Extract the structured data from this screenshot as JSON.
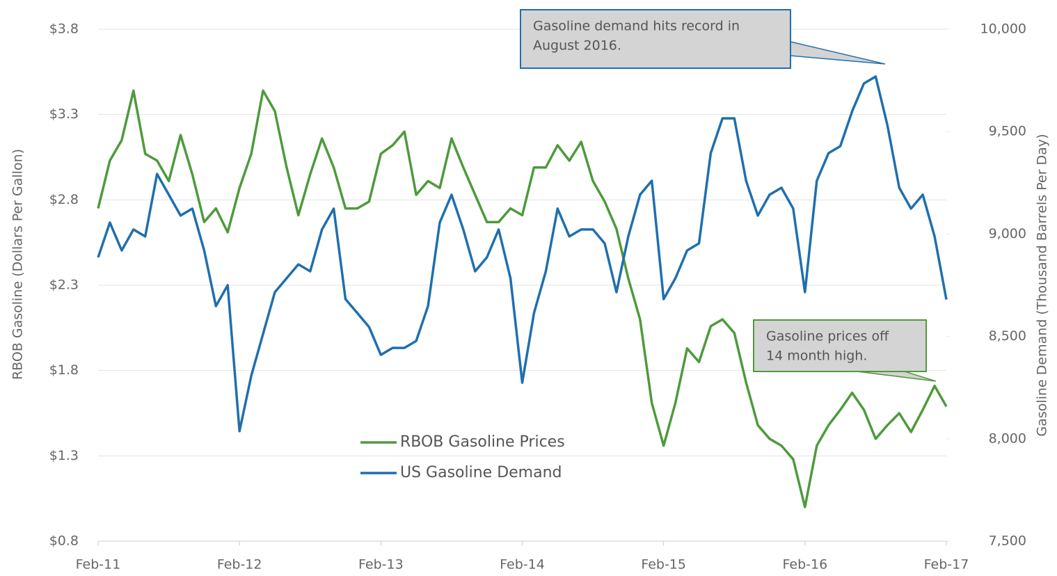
{
  "chart_data": {
    "type": "line",
    "categories": [
      "Feb-11",
      null,
      null,
      null,
      null,
      null,
      null,
      null,
      null,
      null,
      null,
      null,
      "Feb-12",
      null,
      null,
      null,
      null,
      null,
      null,
      null,
      null,
      null,
      null,
      null,
      "Feb-13",
      null,
      null,
      null,
      null,
      null,
      null,
      null,
      null,
      null,
      null,
      null,
      "Feb-14",
      null,
      null,
      null,
      null,
      null,
      null,
      null,
      null,
      null,
      null,
      null,
      "Feb-15",
      null,
      null,
      null,
      null,
      null,
      null,
      null,
      null,
      null,
      null,
      null,
      "Feb-16",
      null,
      null,
      null,
      null,
      null,
      null,
      null,
      null,
      null,
      null,
      null,
      "Feb-17"
    ],
    "series": [
      {
        "name": "RBOB Gasoline Prices",
        "color": "#4e9a3c",
        "values": [
          2.75,
          3.03,
          3.15,
          3.44,
          3.07,
          3.03,
          2.91,
          3.18,
          2.95,
          2.67,
          2.75,
          2.61,
          2.87,
          3.07,
          3.44,
          3.32,
          2.99,
          2.71,
          2.95,
          3.16,
          2.99,
          2.75,
          2.75,
          2.79,
          3.07,
          3.12,
          3.2,
          2.83,
          2.91,
          2.87,
          3.16,
          2.99,
          2.83,
          2.67,
          2.67,
          2.75,
          2.71,
          2.99,
          2.99,
          3.12,
          3.03,
          3.14,
          2.91,
          2.79,
          2.63,
          2.34,
          2.1,
          1.61,
          1.36,
          1.61,
          1.93,
          1.85,
          2.06,
          2.1,
          2.02,
          1.73,
          1.48,
          1.4,
          1.36,
          1.28,
          1.0,
          1.36,
          1.48,
          1.57,
          1.67,
          1.57,
          1.4,
          1.48,
          1.55,
          1.44,
          1.57,
          1.71,
          1.59
        ]
      },
      {
        "name": "US Gasoline Demand",
        "color": "#1f6fae",
        "axis": "y2",
        "values": [
          8886,
          9056,
          8920,
          9022,
          8988,
          9293,
          9192,
          9090,
          9124,
          8920,
          8648,
          8750,
          8037,
          8308,
          8512,
          8716,
          8784,
          8852,
          8818,
          9022,
          9124,
          8682,
          8614,
          8546,
          8410,
          8444,
          8444,
          8478,
          8648,
          9056,
          9192,
          9022,
          8818,
          8886,
          9022,
          8784,
          8274,
          8614,
          8818,
          9124,
          8988,
          9022,
          9022,
          8954,
          8716,
          8988,
          9192,
          9260,
          8682,
          8784,
          8920,
          8954,
          9395,
          9565,
          9565,
          9260,
          9090,
          9192,
          9226,
          9124,
          8716,
          9260,
          9395,
          9429,
          9599,
          9735,
          9769,
          9531,
          9226,
          9124,
          9192,
          8988,
          8680
        ]
      }
    ],
    "y_label": "RBOB Gasoline (Dollars Per Gallon)",
    "y2_label": "Gasoline Demand (Thousand Barrels Per Day)",
    "ylim": [
      0.8,
      3.8
    ],
    "yticks": [
      {
        "value": 0.8,
        "label": "$0.8"
      },
      {
        "value": 1.3,
        "label": "$1.3"
      },
      {
        "value": 1.8,
        "label": "$1.8"
      },
      {
        "value": 2.3,
        "label": "$2.3"
      },
      {
        "value": 2.8,
        "label": "$2.8"
      },
      {
        "value": 3.3,
        "label": "$3.3"
      },
      {
        "value": 3.8,
        "label": "$3.8"
      }
    ],
    "y2lim": [
      7500,
      10000
    ],
    "y2ticks": [
      {
        "value": 7500,
        "label": "7,500"
      },
      {
        "value": 8000,
        "label": "8,000"
      },
      {
        "value": 8500,
        "label": "8,500"
      },
      {
        "value": 9000,
        "label": "9,000"
      },
      {
        "value": 9500,
        "label": "9,500"
      },
      {
        "value": 10000,
        "label": "10,000"
      }
    ],
    "grid": true,
    "annotations": [
      {
        "text": [
          "Gasoline demand hits record in",
          "August  2016."
        ]
      },
      {
        "text": [
          "Gasoline prices off",
          "14 month high."
        ]
      }
    ]
  }
}
